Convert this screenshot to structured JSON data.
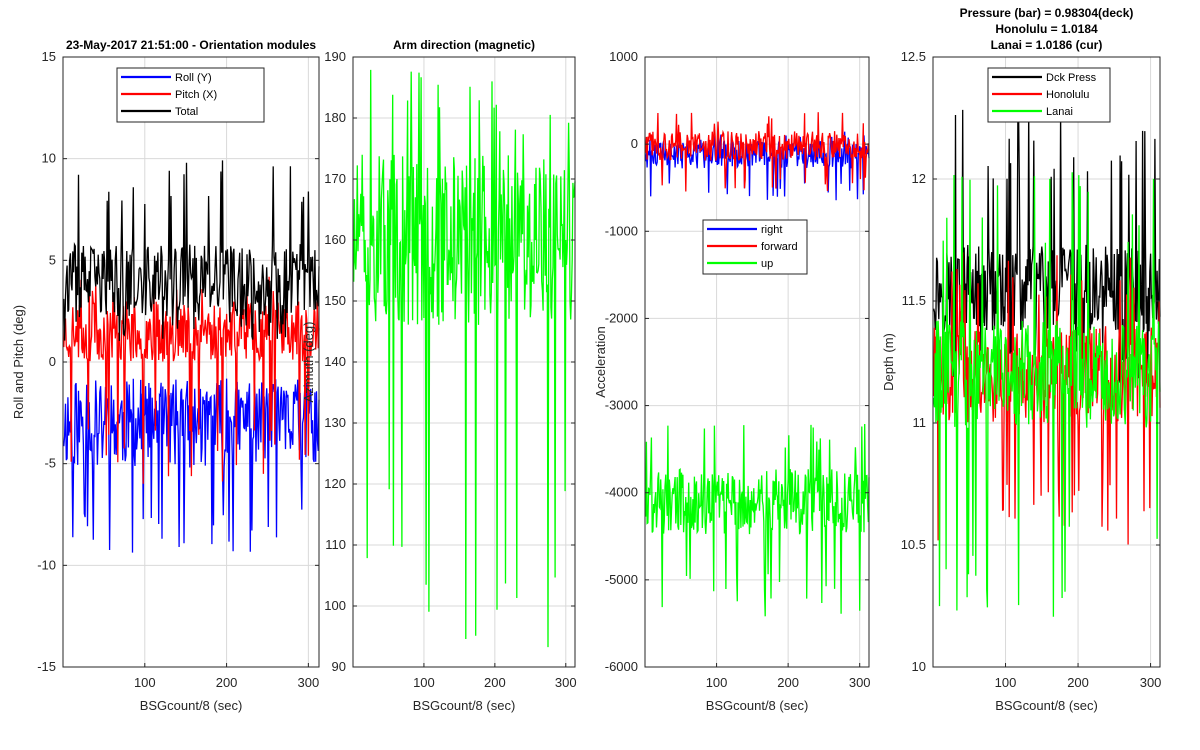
{
  "figure": {
    "background": "#ffffff",
    "grid_color": "#d9d9d9",
    "axis_color": "#262626"
  },
  "chart_data": [
    {
      "type": "line",
      "id": "orientation",
      "title_lines": [
        "23-May-2017 21:51:00 - Orientation modules"
      ],
      "xlabel": "BSGcount/8 (sec)",
      "ylabel": "Roll and Pitch (deg)",
      "xlim": [
        0,
        313
      ],
      "ylim": [
        -15,
        15
      ],
      "xticks": [
        100,
        200,
        300
      ],
      "yticks": [
        -15,
        -10,
        -5,
        0,
        5,
        10,
        15
      ],
      "legend": {
        "position": "top",
        "entries": [
          "Roll (Y)",
          "Pitch (X)",
          "Total"
        ]
      },
      "series": [
        {
          "name": "Roll (Y)",
          "color": "#0000ff",
          "mean": -3.0,
          "amp": 2.2,
          "spike_lo": -9.4,
          "spike_hi": -1.0,
          "seed": 11
        },
        {
          "name": "Pitch (X)",
          "color": "#ff0000",
          "mean": 1.5,
          "amp": 1.5,
          "spike_lo": -6.2,
          "spike_hi": 4.2,
          "seed": 23
        },
        {
          "name": "Total",
          "color": "#000000",
          "mean": 4.0,
          "amp": 1.8,
          "spike_lo": 1.0,
          "spike_hi": 10.0,
          "seed": 37
        }
      ]
    },
    {
      "type": "line",
      "id": "azimuth",
      "title_lines": [
        "Arm direction (magnetic)"
      ],
      "xlabel": "BSGcount/8 (sec)",
      "ylabel": "Azimuth (deg)",
      "xlim": [
        0,
        313
      ],
      "ylim": [
        90,
        190
      ],
      "xticks": [
        100,
        200,
        300
      ],
      "yticks": [
        90,
        100,
        110,
        120,
        130,
        140,
        150,
        160,
        170,
        180,
        190
      ],
      "legend": null,
      "series": [
        {
          "name": "Azimuth",
          "color": "#00ff00",
          "mean": 160,
          "amp": 14,
          "spike_lo": 92,
          "spike_hi": 188,
          "seed": 51
        }
      ]
    },
    {
      "type": "line",
      "id": "acceleration",
      "title_lines": [],
      "xlabel": "BSGcount/8 (sec)",
      "ylabel": "Acceleration",
      "xlim": [
        0,
        313
      ],
      "ylim": [
        -6000,
        1000
      ],
      "xticks": [
        100,
        200,
        300
      ],
      "yticks": [
        -6000,
        -5000,
        -4000,
        -3000,
        -2000,
        -1000,
        0,
        1000
      ],
      "legend": {
        "position": "middle",
        "entries": [
          "right",
          "forward",
          "up"
        ]
      },
      "series": [
        {
          "name": "right",
          "color": "#0000ff",
          "mean": -120,
          "amp": 160,
          "spike_lo": -650,
          "spike_hi": 150,
          "seed": 61
        },
        {
          "name": "forward",
          "color": "#ff0000",
          "mean": -20,
          "amp": 170,
          "spike_lo": -550,
          "spike_hi": 380,
          "seed": 73
        },
        {
          "name": "up",
          "color": "#00ff00",
          "mean": -4100,
          "amp": 380,
          "spike_lo": -5450,
          "spike_hi": -3150,
          "seed": 89
        }
      ]
    },
    {
      "type": "line",
      "id": "depth",
      "title_lines": [
        "Pressure (bar) = 0.98304(deck)",
        "Honolulu = 1.0184",
        "Lanai = 1.0186 (cur)"
      ],
      "xlabel": "BSGcount/8 (sec)",
      "ylabel": "Depth (m)",
      "xlim": [
        0,
        313
      ],
      "ylim": [
        10,
        12.5
      ],
      "xticks": [
        100,
        200,
        300
      ],
      "yticks": [
        10,
        10.5,
        11,
        11.5,
        12,
        12.5
      ],
      "legend": {
        "position": "top",
        "entries": [
          "Dck Press",
          "Honolulu",
          "Lanai"
        ]
      },
      "series": [
        {
          "name": "Dck Press",
          "color": "#000000",
          "mean": 11.55,
          "amp": 0.18,
          "spike_lo": 11.15,
          "spike_hi": 12.3,
          "seed": 97
        },
        {
          "name": "Honolulu",
          "color": "#ff0000",
          "mean": 11.2,
          "amp": 0.2,
          "spike_lo": 10.5,
          "spike_hi": 11.7,
          "seed": 101
        },
        {
          "name": "Lanai",
          "color": "#00ff00",
          "mean": 11.2,
          "amp": 0.22,
          "spike_lo": 10.2,
          "spike_hi": 12.05,
          "seed": 113
        }
      ]
    }
  ]
}
